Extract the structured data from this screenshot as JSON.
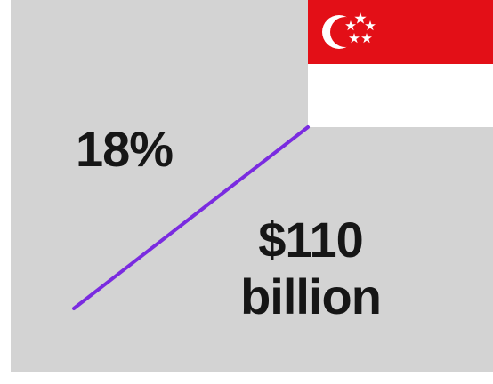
{
  "stats": {
    "percent": "18%",
    "amount_line1": "$110",
    "amount_line2": "billion"
  },
  "flag": {
    "country": "Singapore",
    "colors": {
      "red": "#e30f17",
      "white": "#ffffff"
    }
  },
  "colors": {
    "background": "#d3d3d3",
    "text": "#161616",
    "divider": "#7a2be0"
  }
}
